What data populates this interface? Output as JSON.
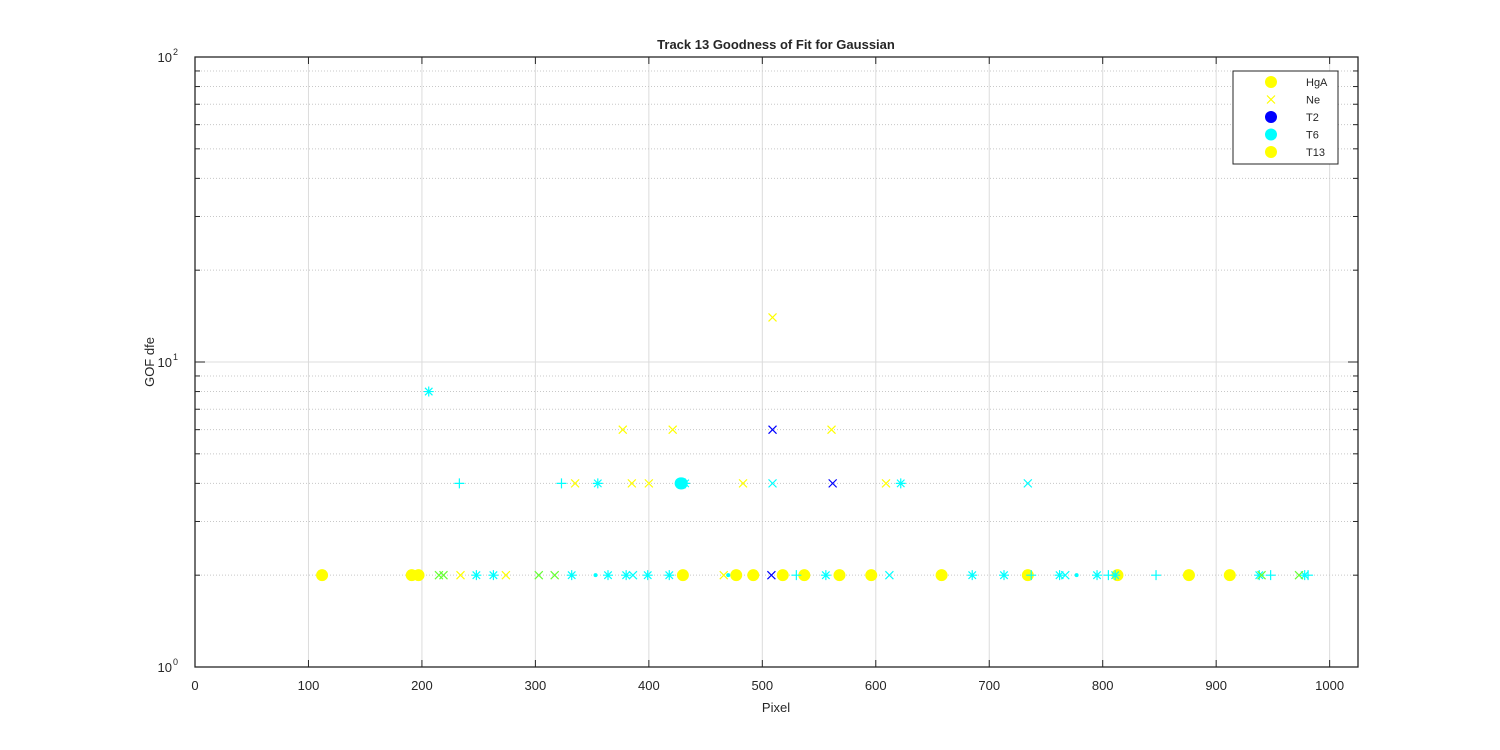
{
  "chart_data": {
    "type": "scatter",
    "title": "Track 13  Goodness of Fit for Gaussian",
    "xlabel": "Pixel",
    "ylabel": "GOF dfe",
    "xlim": [
      0,
      1025
    ],
    "ylim": [
      1,
      100
    ],
    "yscale": "log",
    "xticks": [
      0,
      100,
      200,
      300,
      400,
      500,
      600,
      700,
      800,
      900,
      1000
    ],
    "yticks": [
      {
        "base": "10",
        "exp": "0",
        "value": 1
      },
      {
        "base": "10",
        "exp": "1",
        "value": 10
      },
      {
        "base": "10",
        "exp": "2",
        "value": 100
      }
    ],
    "grid": true,
    "legend_position": "top-right",
    "legend": [
      {
        "label": "HgA",
        "marker": "dot",
        "color": "#ffff00"
      },
      {
        "label": "Ne",
        "marker": "x",
        "color": "#ffff00"
      },
      {
        "label": "T2",
        "marker": "dot",
        "color": "#0000ff"
      },
      {
        "label": "T6",
        "marker": "dot",
        "color": "#00ffff"
      },
      {
        "label": "T13",
        "marker": "dot",
        "color": "#ffff00"
      }
    ],
    "series": [
      {
        "label": "yellow dots",
        "marker": "dot",
        "color": "#ffff00",
        "size": 6,
        "x": [
          112,
          191,
          197,
          430,
          477,
          492,
          518,
          537,
          568,
          596,
          658,
          734,
          813,
          876,
          912
        ],
        "y": [
          2,
          2,
          2,
          2,
          2,
          2,
          2,
          2,
          2,
          2,
          2,
          2,
          2,
          2,
          2
        ]
      },
      {
        "label": "yellow x",
        "marker": "x",
        "color": "#ffff00",
        "size": 4,
        "x": [
          509,
          377,
          421,
          561,
          335,
          385,
          400,
          483,
          609,
          234,
          274,
          466
        ],
        "y": [
          14,
          6,
          6,
          6,
          4,
          4,
          4,
          4,
          4,
          2,
          2,
          2
        ]
      },
      {
        "label": "blue x",
        "marker": "x",
        "color": "#0000ff",
        "size": 4,
        "x": [
          509,
          562,
          508
        ],
        "y": [
          6,
          4,
          2
        ]
      },
      {
        "label": "cyan asterisk",
        "marker": "asterisk",
        "color": "#00ffff",
        "size": 5,
        "x": [
          206,
          355,
          432,
          622,
          248,
          263,
          332,
          364,
          380,
          399,
          418,
          556,
          685,
          713,
          762,
          795,
          811,
          938,
          978
        ],
        "y": [
          8,
          4,
          4,
          4,
          2,
          2,
          2,
          2,
          2,
          2,
          2,
          2,
          2,
          2,
          2,
          2,
          2,
          2,
          2
        ]
      },
      {
        "label": "cyan plus",
        "marker": "plus",
        "color": "#00ffff",
        "size": 5,
        "x": [
          233,
          323,
          530,
          737,
          805,
          847,
          948,
          981
        ],
        "y": [
          4,
          4,
          2,
          2,
          2,
          2,
          2,
          2
        ]
      },
      {
        "label": "cyan x",
        "marker": "x",
        "color": "#00ffff",
        "size": 4,
        "x": [
          509,
          734,
          386,
          612,
          767
        ],
        "y": [
          4,
          4,
          2,
          2,
          2
        ]
      },
      {
        "label": "cyan dots",
        "marker": "dot",
        "color": "#00ffff",
        "size": 6,
        "x": [
          428,
          429
        ],
        "y": [
          4,
          4
        ]
      },
      {
        "label": "green x",
        "marker": "x",
        "color": "#66ff33",
        "size": 4,
        "x": [
          215,
          219,
          303,
          317,
          940,
          973
        ],
        "y": [
          2,
          2,
          2,
          2,
          2,
          2
        ]
      },
      {
        "label": "small cyan dots",
        "marker": "dot",
        "color": "#00ffff",
        "size": 2,
        "x": [
          353,
          470,
          777
        ],
        "y": [
          2,
          2,
          2
        ]
      }
    ]
  }
}
